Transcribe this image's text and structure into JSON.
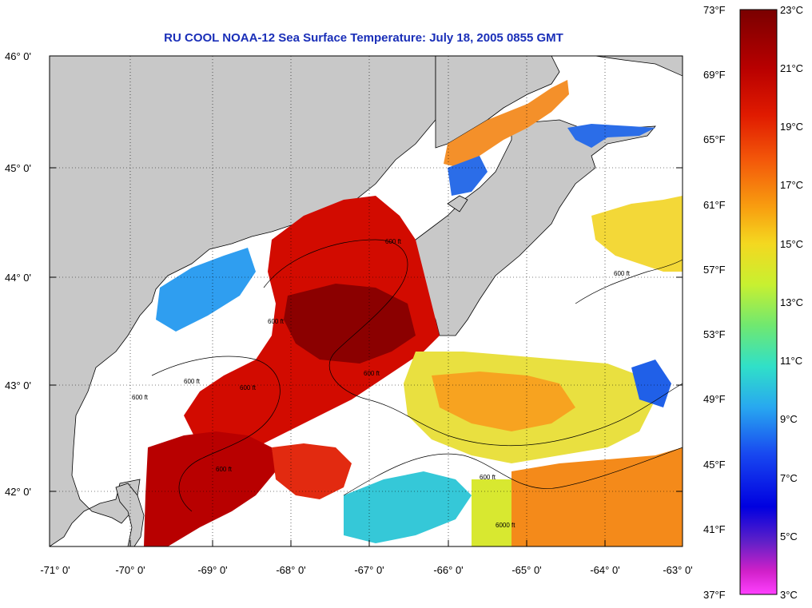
{
  "title": "RU COOL  NOAA-12  Sea Surface Temperature:  July 18, 2005 0855 GMT",
  "map": {
    "lon_range": [
      -71,
      -63
    ],
    "lat_range": [
      41.5,
      46
    ],
    "x_ticks": [
      "-71° 0'",
      "-70° 0'",
      "-69° 0'",
      "-68° 0'",
      "-67° 0'",
      "-66° 0'",
      "-65° 0'",
      "-64° 0'",
      "-63° 0'"
    ],
    "y_ticks": [
      "46° 0'",
      "45° 0'",
      "44° 0'",
      "43° 0'",
      "42° 0'"
    ],
    "contour_labels": [
      "600 ft",
      "600 ft",
      "600 ft",
      "600 ft",
      "600 ft",
      "600 ft",
      "600 ft",
      "600 ft",
      "600 ft",
      "6000 ft"
    ],
    "colors": {
      "land": "#c8c8c8",
      "no_data": "#ffffff"
    }
  },
  "colorbar": {
    "fahrenheit": [
      "73°F",
      "69°F",
      "65°F",
      "61°F",
      "57°F",
      "53°F",
      "49°F",
      "45°F",
      "41°F",
      "37°F"
    ],
    "celsius": [
      "23°C",
      "21°C",
      "19°C",
      "17°C",
      "15°C",
      "13°C",
      "11°C",
      "9°C",
      "7°C",
      "5°C",
      "3°C"
    ],
    "gradient": [
      "#7a0000",
      "#b00000",
      "#e01a00",
      "#f45a0a",
      "#f8a010",
      "#f4d820",
      "#e8f020",
      "#8cec50",
      "#30e0c8",
      "#28a8f0",
      "#1848f0",
      "#0000e0",
      "#6020c8",
      "#d020c8",
      "#ff40ff"
    ]
  }
}
